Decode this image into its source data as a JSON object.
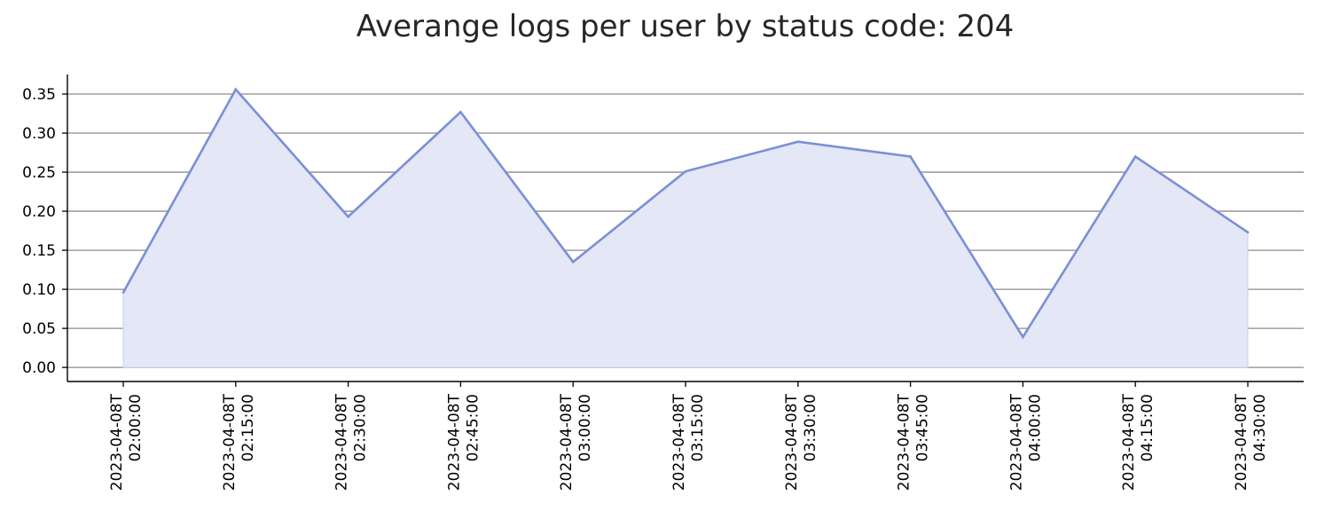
{
  "chart_data": {
    "type": "area",
    "title": "Averange logs per user by status code: 204",
    "xlabel": "",
    "ylabel": "",
    "ylim": [
      -0.018,
      0.375
    ],
    "grid": "horizontal",
    "legend": "none",
    "y_ticks": [
      "0.00",
      "0.05",
      "0.10",
      "0.15",
      "0.20",
      "0.25",
      "0.30",
      "0.35"
    ],
    "y_tick_values": [
      0.0,
      0.05,
      0.1,
      0.15,
      0.2,
      0.25,
      0.3,
      0.35
    ],
    "x": [
      "2023-04-08T\n02:00:00",
      "2023-04-08T\n02:15:00",
      "2023-04-08T\n02:30:00",
      "2023-04-08T\n02:45:00",
      "2023-04-08T\n03:00:00",
      "2023-04-08T\n03:15:00",
      "2023-04-08T\n03:30:00",
      "2023-04-08T\n03:45:00",
      "2023-04-08T\n04:00:00",
      "2023-04-08T\n04:15:00",
      "2023-04-08T\n04:30:00"
    ],
    "series": [
      {
        "values": [
          0.096,
          0.356,
          0.193,
          0.327,
          0.135,
          0.251,
          0.289,
          0.27,
          0.039,
          0.27,
          0.173
        ]
      }
    ],
    "colors": {
      "line": "#7b8fd6",
      "fill": "#e3e7f6",
      "grid": "#8c8c8c",
      "axis": "#000000"
    }
  }
}
